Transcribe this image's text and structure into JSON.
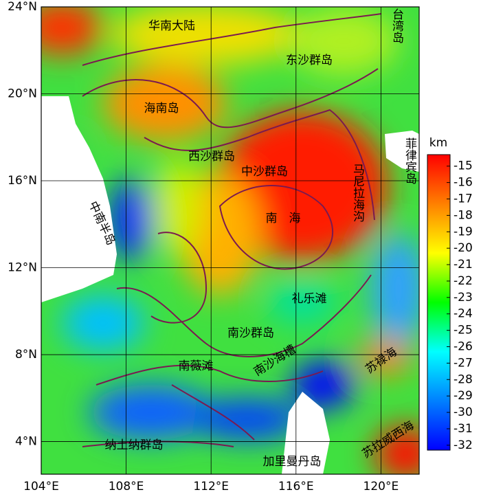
{
  "map": {
    "xticks": [
      {
        "value": 104,
        "label": "104°E"
      },
      {
        "value": 108,
        "label": "108°E"
      },
      {
        "value": 112,
        "label": "112°E"
      },
      {
        "value": 116,
        "label": "116°E"
      },
      {
        "value": 120,
        "label": "120°E"
      }
    ],
    "yticks": [
      {
        "value": 24,
        "label": "24°N"
      },
      {
        "value": 20,
        "label": "20°N"
      },
      {
        "value": 16,
        "label": "16°N"
      },
      {
        "value": 12,
        "label": "12°N"
      },
      {
        "value": 8,
        "label": "8°N"
      },
      {
        "value": 4,
        "label": "4°N"
      }
    ],
    "xlim": [
      104,
      121.8
    ],
    "ylim": [
      2.5,
      24
    ],
    "labels": [
      "华南大陆",
      "东沙群岛",
      "台湾岛",
      "海南岛",
      "西沙群岛",
      "中沙群岛",
      "菲律宾岛",
      "马尼拉海沟",
      "南　海",
      "中南半岛",
      "礼乐滩",
      "南沙群岛",
      "南薇滩",
      "南沙海槽",
      "苏禄海",
      "纳土纳群岛",
      "加里曼丹岛",
      "苏拉威西海"
    ],
    "colorbar": {
      "unit": "km",
      "ticks": [
        -15,
        -16,
        -17,
        -18,
        -19,
        -20,
        -21,
        -22,
        -23,
        -24,
        -25,
        -26,
        -27,
        -28,
        -29,
        -30,
        -31,
        -32
      ],
      "range": [
        -14.3,
        -32.3
      ],
      "colors": [
        "#ff0000",
        "#ff8000",
        "#ffff00",
        "#00ff00",
        "#00ffff",
        "#0080ff",
        "#0000ff"
      ]
    }
  }
}
